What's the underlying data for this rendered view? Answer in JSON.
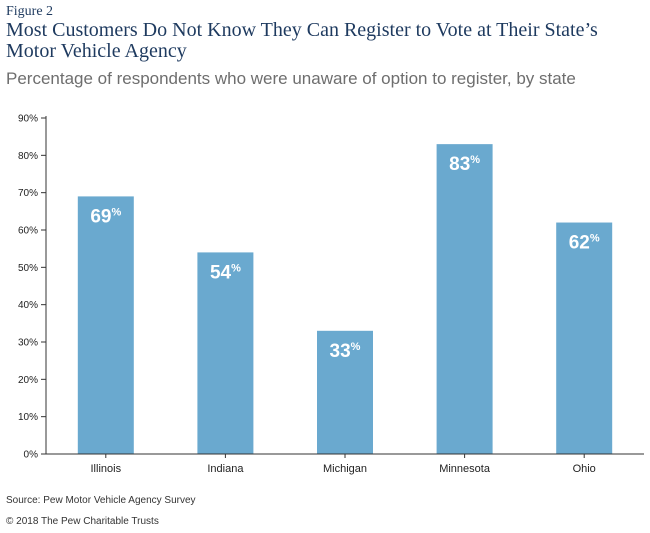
{
  "figure_label": "Figure 2",
  "title": "Most Customers Do Not Know They Can Register to Vote at Their State’s Motor Vehicle Agency",
  "subtitle": "Percentage of respondents who were unaware of option to register, by state",
  "source": "Source: Pew Motor Vehicle Agency Survey",
  "copyright": "© 2018 The Pew Charitable Trusts",
  "colors": {
    "bar": "#6aa9cf",
    "axis": "#333333",
    "title": "#1e3a5f"
  },
  "chart_data": {
    "type": "bar",
    "categories": [
      "Illinois",
      "Indiana",
      "Michigan",
      "Minnesota",
      "Ohio"
    ],
    "values": [
      69,
      54,
      33,
      83,
      62
    ],
    "data_labels": [
      "69%",
      "54%",
      "33%",
      "83%",
      "62%"
    ],
    "ylim": [
      0,
      90
    ],
    "yticks": [
      0,
      10,
      20,
      30,
      40,
      50,
      60,
      70,
      80,
      90
    ],
    "ytick_labels": [
      "0%",
      "10%",
      "20%",
      "30%",
      "40%",
      "50%",
      "60%",
      "70%",
      "80%",
      "90%"
    ],
    "grid": false
  }
}
